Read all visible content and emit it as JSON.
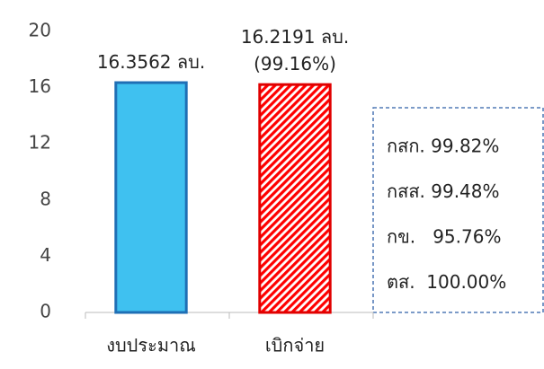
{
  "chart_data": {
    "type": "bar",
    "categories": [
      "งบประมาณ",
      "เบิกจ่าย"
    ],
    "values": [
      16.3562,
      16.2191
    ],
    "value_labels": [
      "16.3562 ลบ.",
      "16.2191 ลบ.\n(99.16%)"
    ],
    "colors": [
      "#3fc1f0",
      "#ff0000"
    ],
    "edge_colors": [
      "#1f6fb5",
      "#e00000"
    ],
    "styles": [
      "solid",
      "hatch"
    ],
    "ylim": [
      0,
      20
    ],
    "yticks": [
      0,
      4,
      8,
      12,
      16,
      20
    ],
    "grid": false,
    "annotation": [
      "กสก. 99.82%",
      "กสส. 99.48%",
      "กข.   95.76%",
      "ตส.  100.00%"
    ]
  }
}
